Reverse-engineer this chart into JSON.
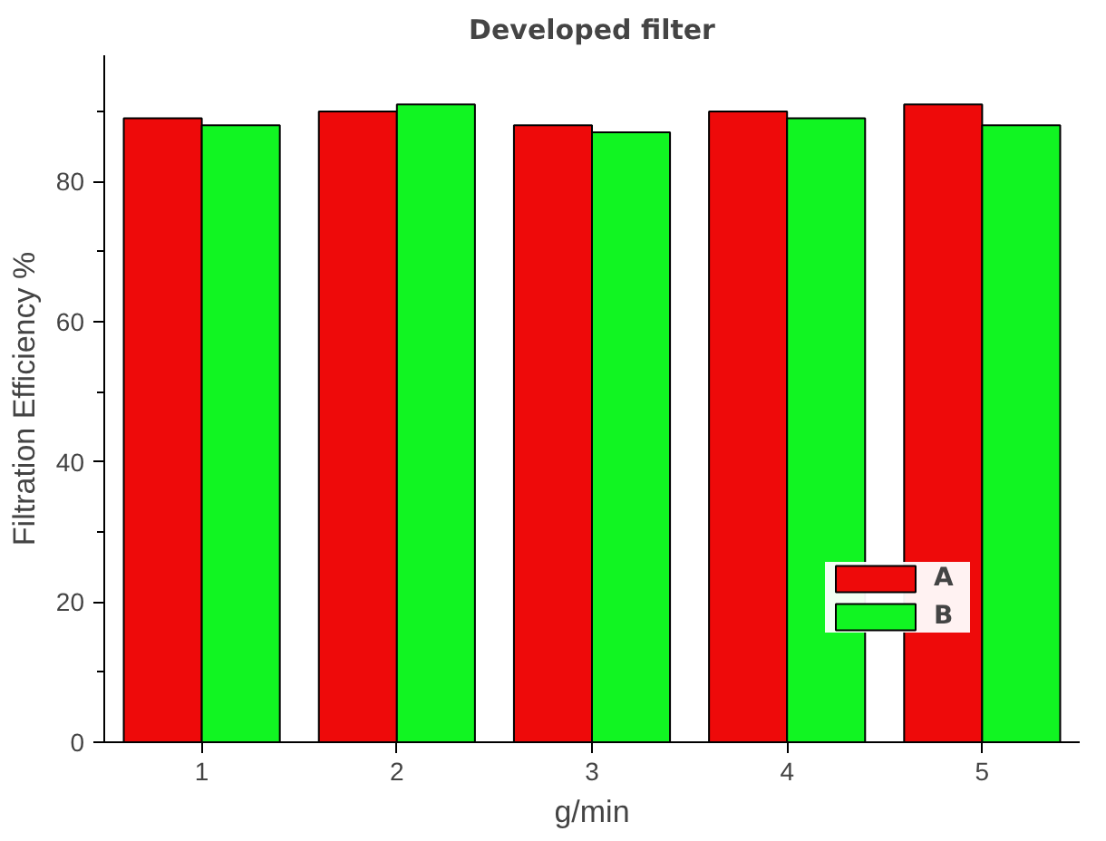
{
  "chart_data": {
    "type": "bar",
    "title": "Developed filter",
    "xlabel": "g/min",
    "ylabel": "Filtration Efficiency %",
    "categories": [
      "1",
      "2",
      "3",
      "4",
      "5"
    ],
    "series": [
      {
        "name": "A",
        "color": "#ee0a0a",
        "values": [
          89,
          90,
          88,
          90,
          91
        ]
      },
      {
        "name": "B",
        "color": "#11f522",
        "values": [
          88,
          91,
          87,
          89,
          88
        ]
      }
    ],
    "ylim": [
      0,
      98
    ],
    "yticks": [
      0,
      20,
      40,
      60,
      80
    ],
    "grid": false,
    "legend": "bottom right"
  }
}
